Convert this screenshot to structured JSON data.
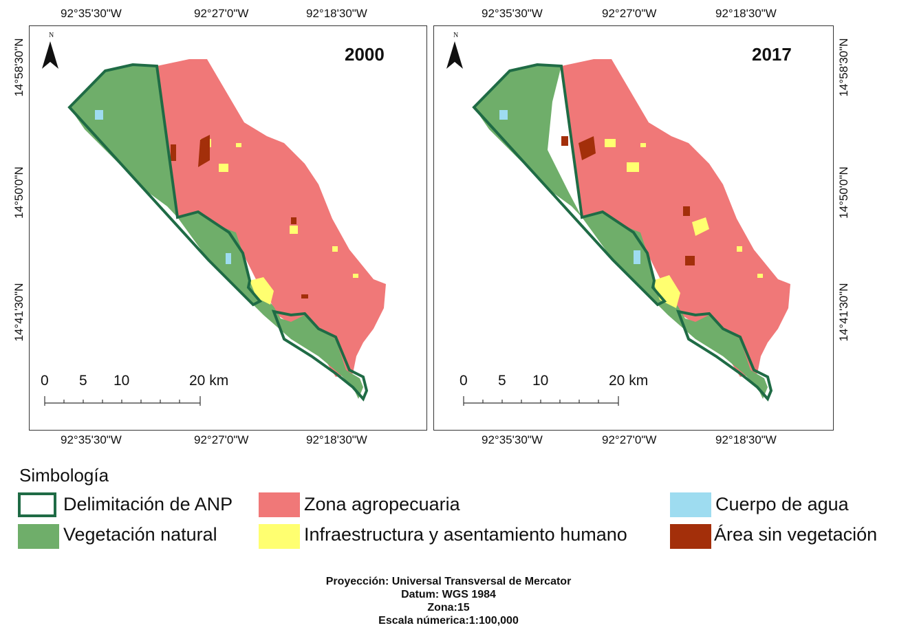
{
  "maps": [
    {
      "year": "2000",
      "top_lon_labels": [
        "92°35'30\"W",
        "92°27'0\"W",
        "92°18'30\"W"
      ],
      "bottom_lon_labels": [
        "92°35'30\"W",
        "92°27'0\"W",
        "92°18'30\"W"
      ],
      "lat_labels": [
        "14°58'30\"N",
        "14°50'0\"N",
        "14°41'30\"N"
      ],
      "north_label": "N",
      "scale_labels": [
        "0",
        "5",
        "10",
        "20 km"
      ]
    },
    {
      "year": "2017",
      "top_lon_labels": [
        "92°35'30\"W",
        "92°27'0\"W",
        "92°18'30\"W"
      ],
      "bottom_lon_labels": [
        "92°35'30\"W",
        "92°27'0\"W",
        "92°18'30\"W"
      ],
      "lat_labels": [
        "14°58'30\"N",
        "14°50'0\"N",
        "14°41'30\"N"
      ],
      "north_label": "N",
      "scale_labels": [
        "0",
        "5",
        "10",
        "20 km"
      ]
    }
  ],
  "legend": {
    "title": "Simbología",
    "items": [
      {
        "label": "Delimitación de  ANP",
        "color": "#1f6b45",
        "icon": "outline-box"
      },
      {
        "label": "Vegetación natural",
        "color": "#6fae6a"
      },
      {
        "label": "Zona agropecuaria",
        "color": "#f07878"
      },
      {
        "label": "Infraestructura y asentamiento humano",
        "color": "#ffff70"
      },
      {
        "label": "Cuerpo de agua",
        "color": "#9edcf0"
      },
      {
        "label": "Área sin vegetación",
        "color": "#a32f0a"
      }
    ]
  },
  "footer": [
    "Proyección: Universal Transversal de Mercator",
    "Datum: WGS 1984",
    "Zona:15",
    "Escala númerica:1:100,000"
  ]
}
